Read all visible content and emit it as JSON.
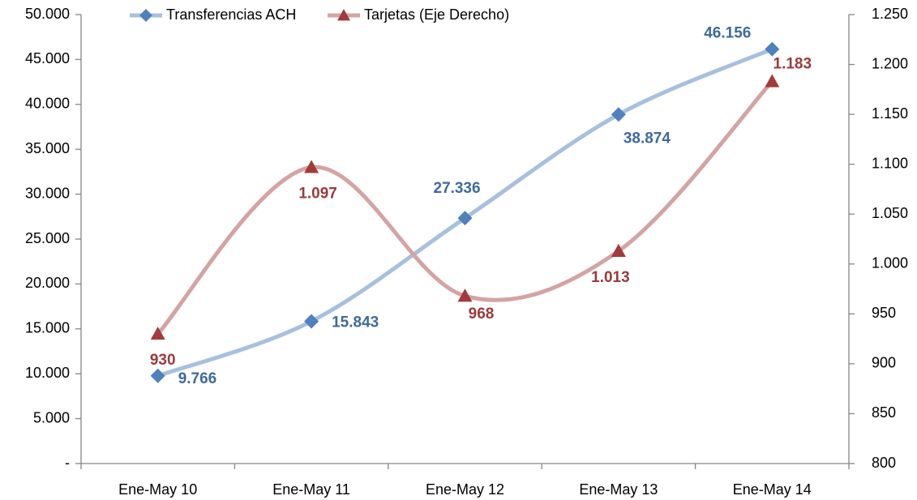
{
  "chart_data": {
    "type": "line",
    "categories": [
      "Ene-May 10",
      "Ene-May 11",
      "Ene-May 12",
      "Ene-May 13",
      "Ene-May 14"
    ],
    "series": [
      {
        "name": "Transferencias ACH",
        "color": "#4f81bd",
        "line_color": "#a7c0de",
        "label_color": "#3e6a9c",
        "values": [
          9766,
          15843,
          27336,
          38874,
          46156
        ],
        "value_labels": [
          "9.766",
          "15.843",
          "27.336",
          "38.874",
          "46.156"
        ]
      },
      {
        "name": "Tarjetas (Eje Derecho)",
        "color": "#a23b3b",
        "line_color": "#d5a3a3",
        "label_color": "#9b3a3a",
        "axis": "y2",
        "values": [
          930,
          1097,
          968,
          1013,
          1183
        ],
        "value_labels": [
          "930",
          "1.097",
          "968",
          "1.013",
          "1.183"
        ]
      }
    ],
    "ylim": [
      0,
      50000
    ],
    "yticks": [
      {
        "value": 0,
        "label": "-"
      },
      {
        "value": 5000,
        "label": "5.000"
      },
      {
        "value": 10000,
        "label": "10.000"
      },
      {
        "value": 15000,
        "label": "15.000"
      },
      {
        "value": 20000,
        "label": "20.000"
      },
      {
        "value": 25000,
        "label": "25.000"
      },
      {
        "value": 30000,
        "label": "30.000"
      },
      {
        "value": 35000,
        "label": "35.000"
      },
      {
        "value": 40000,
        "label": "40.000"
      },
      {
        "value": 45000,
        "label": "45.000"
      },
      {
        "value": 50000,
        "label": "50.000"
      }
    ],
    "y2lim": [
      800,
      1250
    ],
    "y2ticks": [
      800,
      850,
      900,
      950,
      {
        "value": 1000,
        "label": "1.000"
      },
      {
        "value": 1050,
        "label": "1.050"
      },
      {
        "value": 1100,
        "label": "1.100"
      },
      {
        "value": 1150,
        "label": "1.150"
      },
      {
        "value": 1200,
        "label": "1.200"
      },
      {
        "value": 1250,
        "label": "1.250"
      }
    ],
    "grid": false,
    "legend": "top",
    "smooth": true
  }
}
